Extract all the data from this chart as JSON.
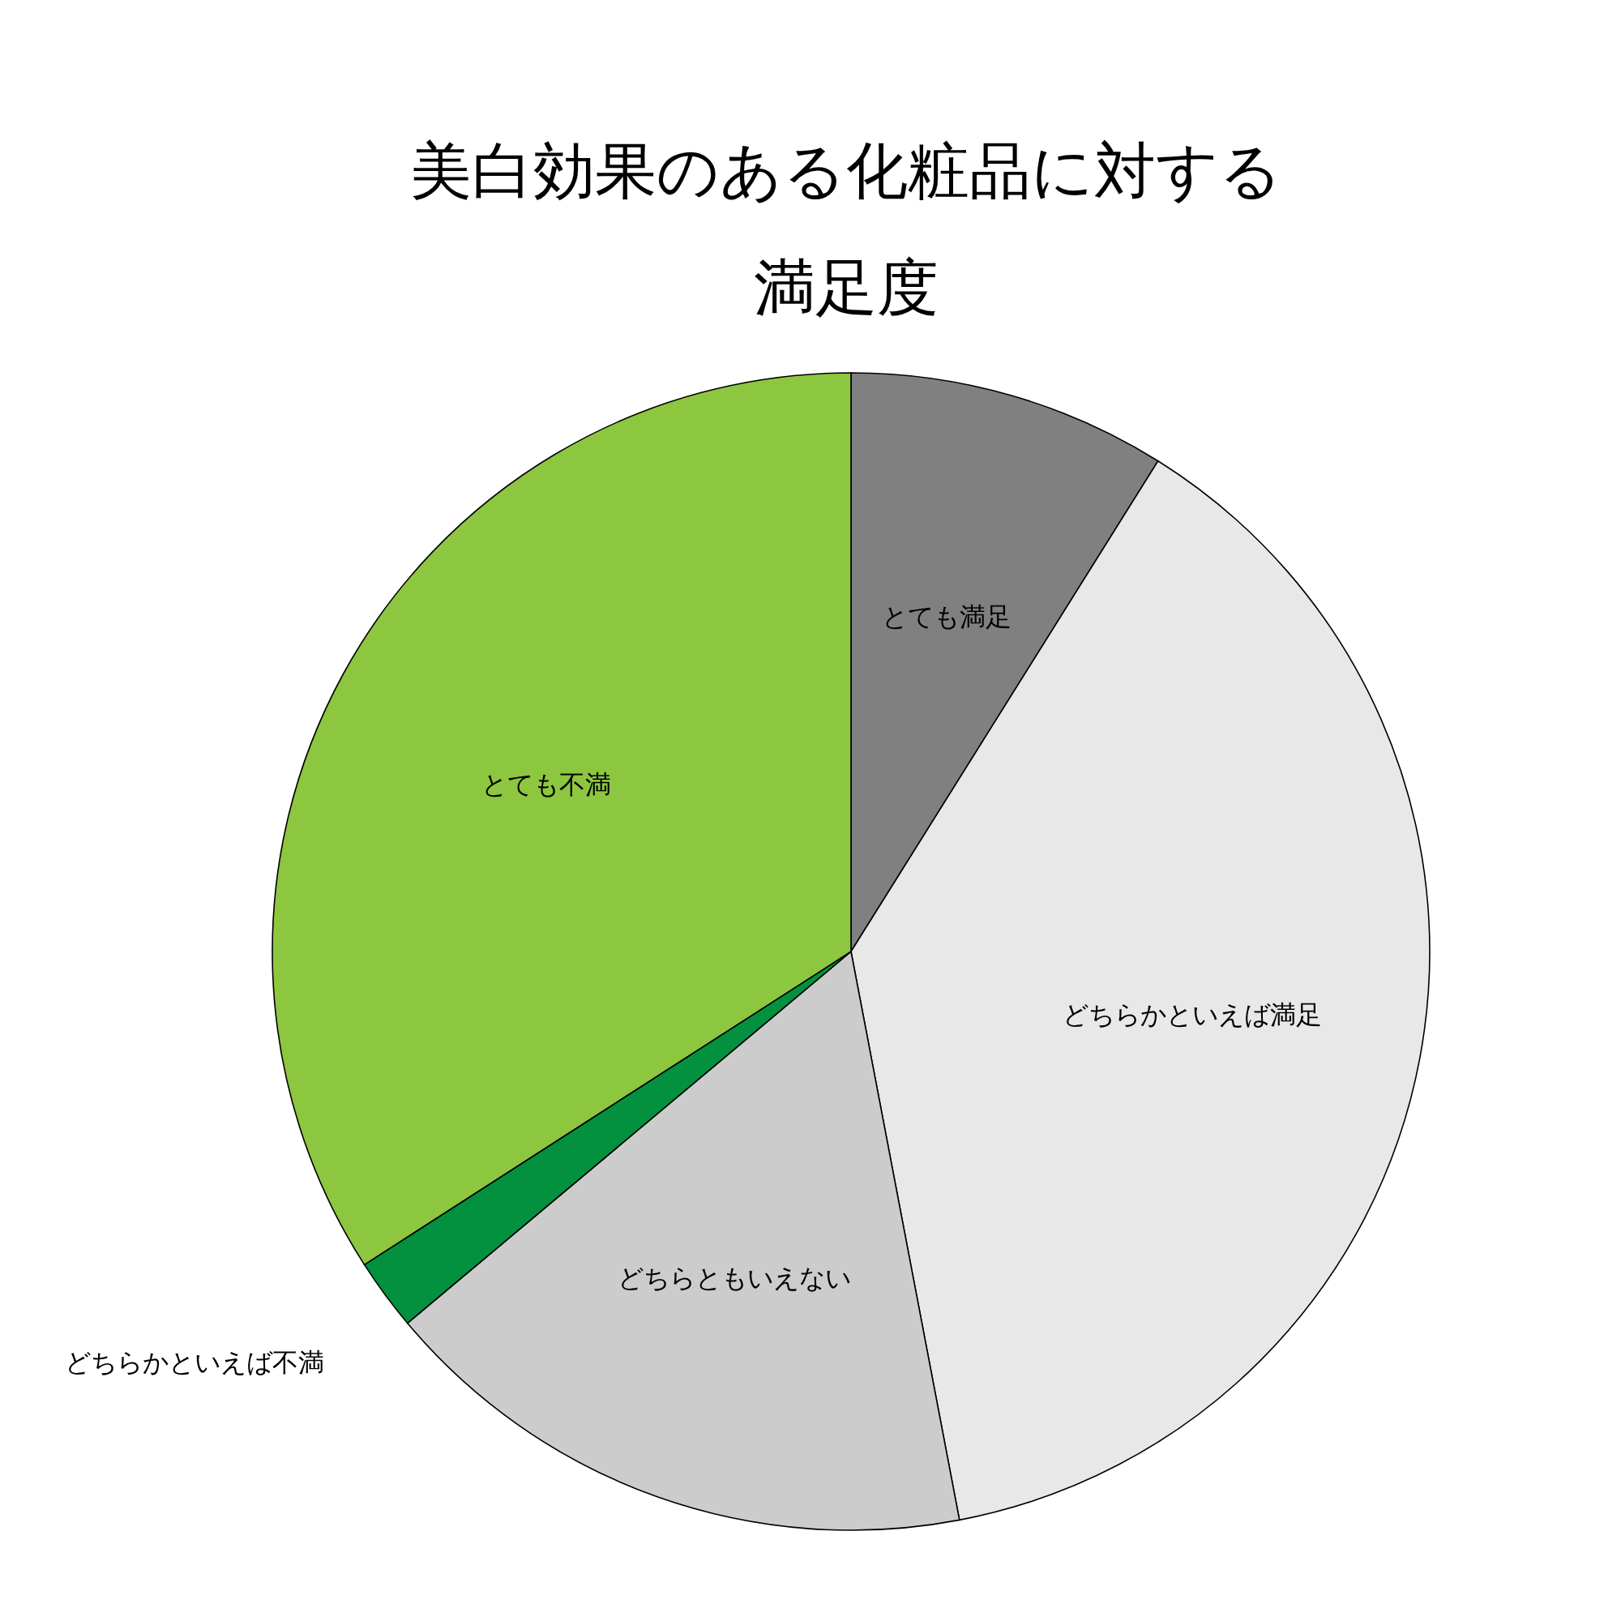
{
  "chart_data": {
    "type": "pie",
    "title": "美白効果のある化粧品に対する満足度",
    "categories": [
      "とても満足",
      "どちらかといえば満足",
      "どちらともいえない",
      "どちらかといえば不満",
      "とても不満"
    ],
    "values": [
      8.9,
      38.1,
      16.9,
      2.0,
      34.1
    ],
    "colors": [
      "#808080",
      "#e8e8e8",
      "#cccccc",
      "#03913f",
      "#8dc63f"
    ],
    "legend": false
  }
}
